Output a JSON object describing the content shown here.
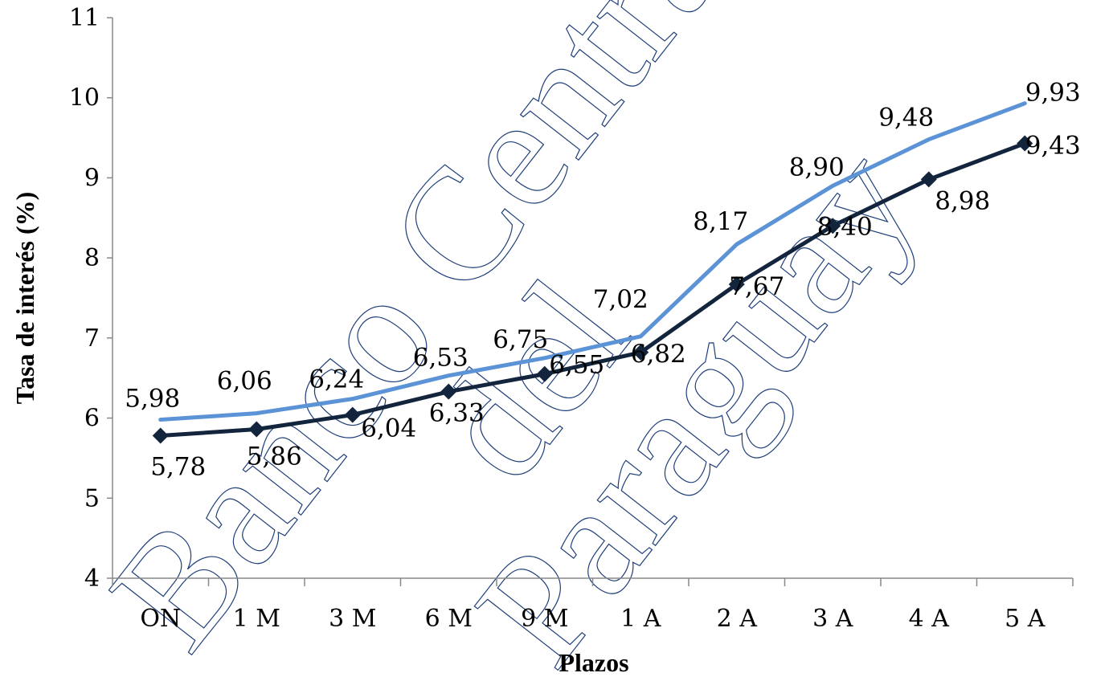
{
  "chart_data": {
    "type": "line",
    "xlabel": "Plazos",
    "ylabel": "Tasa de interés (%)",
    "categories": [
      "ON",
      "1 M",
      "3 M",
      "6 M",
      "9 M",
      "1 A",
      "2 A",
      "3 A",
      "4 A",
      "5 A"
    ],
    "ylim": [
      4,
      11
    ],
    "yticks": [
      4,
      5,
      6,
      7,
      8,
      9,
      10,
      11
    ],
    "grid": false,
    "legend": "none",
    "series": [
      {
        "values": [
          5.98,
          6.06,
          6.24,
          6.53,
          6.75,
          7.02,
          8.17,
          8.9,
          9.48,
          9.93
        ],
        "labels": [
          "5,98",
          "6,06",
          "6,24",
          "6,53",
          "6,75",
          "7,02",
          "8,17",
          "8,90",
          "9,48",
          "9,93"
        ],
        "color": "#5b93d6",
        "marker": "none"
      },
      {
        "values": [
          5.78,
          5.86,
          6.04,
          6.33,
          6.55,
          6.82,
          7.67,
          8.4,
          8.98,
          9.43
        ],
        "labels": [
          "5,78",
          "5,86",
          "6,04",
          "6,33",
          "6,55",
          "6,82",
          "7,67",
          "8,40",
          "8,98",
          "9,43"
        ],
        "color": "#13243d",
        "marker": "diamond"
      }
    ]
  },
  "watermark": {
    "lines": [
      "Banco Central",
      "del",
      "Paraguay"
    ],
    "color": "#1f3f7a"
  }
}
